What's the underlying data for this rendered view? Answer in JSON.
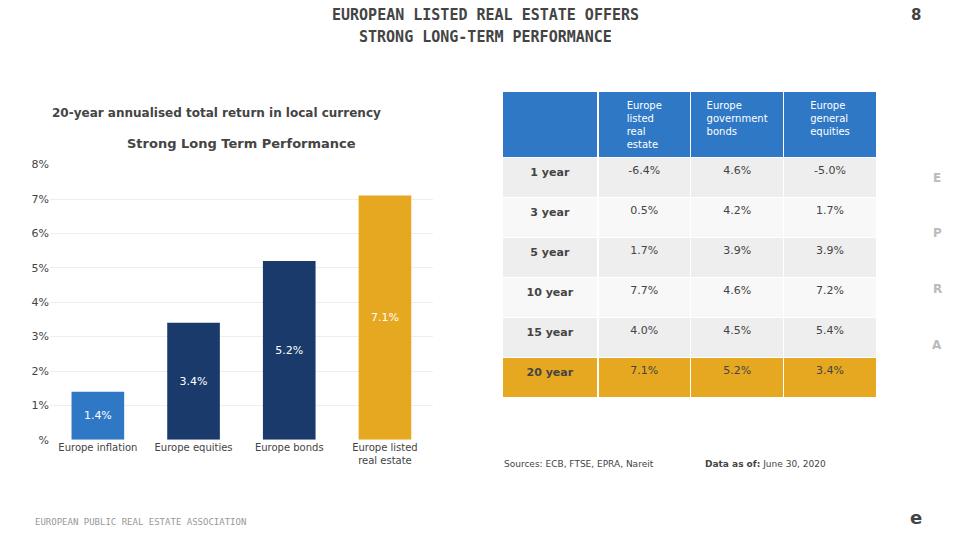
{
  "chart_data": [
    {
      "type": "bar",
      "title": "Strong Long Term Performance",
      "subtitle": "20-year annualised total return in local currency",
      "annotations": [
        "EUROPEAN LISTED REAL ESTATE OFFERS",
        "STRONG LONG-TERM PERFORMANCE",
        "8",
        "E",
        "P",
        "R",
        "A",
        "EUROPEAN PUBLIC REAL ESTATE ASSOCIATION",
        "e"
      ],
      "categories": [
        "Europe inflation",
        "Europe equities",
        "Europe bonds",
        "Europe listed\nreal estate"
      ],
      "values": [
        1.4,
        3.4,
        5.2,
        7.1
      ],
      "value_labels": [
        "1.4%",
        "3.4%",
        "5.2%",
        "7.1%"
      ],
      "data_labels": true,
      "colors": [
        "#2f78c5",
        "#1a3a6b",
        "#1a3a6b",
        "#e6a820"
      ],
      "ylim": [
        0,
        8
      ],
      "yticks": [
        {
          "value": 0,
          "label": "%"
        },
        {
          "value": 1,
          "label": "1%"
        },
        {
          "value": 2,
          "label": "2%"
        },
        {
          "value": 3,
          "label": "3%"
        },
        {
          "value": 4,
          "label": "4%"
        },
        {
          "value": 5,
          "label": "5%"
        },
        {
          "value": 6,
          "label": "6%"
        },
        {
          "value": 7,
          "label": "7%"
        },
        {
          "value": 8,
          "label": "8%"
        }
      ],
      "grid": true
    },
    {
      "type": "table",
      "annotations": [
        "Sources: ECB, FTSE, EPRA, Nareit",
        "Data as of:",
        "June 30, 2020"
      ],
      "color": "#2f78c5",
      "categories": [
        "Europe\nlisted\nreal\nestate",
        "Europe\ngovernment\nbonds",
        "Europe\ngeneral\nequities"
      ],
      "series": [
        {
          "name": "1 year",
          "color": "#eeeeee",
          "values": [
            -6.4,
            4.6,
            -5.0
          ],
          "value_labels": [
            "-6.4%",
            "4.6%",
            "-5.0%"
          ]
        },
        {
          "name": "3 year",
          "color": "#f8f8f8",
          "values": [
            0.5,
            4.2,
            1.7
          ],
          "value_labels": [
            "0.5%",
            "4.2%",
            "1.7%"
          ]
        },
        {
          "name": "5 year",
          "color": "#eeeeee",
          "values": [
            1.7,
            3.9,
            3.9
          ],
          "value_labels": [
            "1.7%",
            "3.9%",
            "3.9%"
          ]
        },
        {
          "name": "10 year",
          "color": "#f8f8f8",
          "values": [
            7.7,
            4.6,
            7.2
          ],
          "value_labels": [
            "7.7%",
            "4.6%",
            "7.2%"
          ]
        },
        {
          "name": "15 year",
          "color": "#eeeeee",
          "values": [
            4.0,
            4.5,
            5.4
          ],
          "value_labels": [
            "4.0%",
            "4.5%",
            "5.4%"
          ]
        },
        {
          "name": "20 year",
          "color": "#e6a820",
          "values": [
            7.1,
            5.2,
            3.4
          ],
          "value_labels": [
            "7.1%",
            "5.2%",
            "3.4%"
          ]
        }
      ]
    }
  ]
}
